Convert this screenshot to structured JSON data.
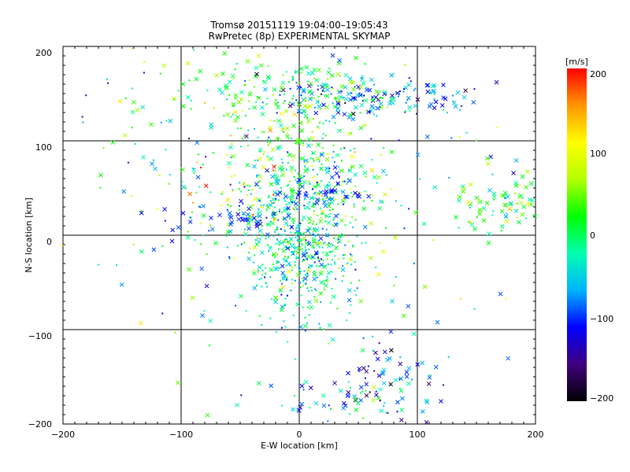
{
  "chart_data": {
    "type": "scatter",
    "title": "Tromsø 20151119 19:04:00–19:05:43",
    "subtitle": "RwPretec (8p) EXPERIMENTAL SKYMAP",
    "xlabel": "E-W location [km]",
    "ylabel": "N-S location [km]",
    "xlim": [
      -200,
      200
    ],
    "ylim": [
      -200,
      200
    ],
    "xticks": [
      "−200",
      "−100",
      "0",
      "100",
      "200"
    ],
    "yticks": [
      "−200",
      "−100",
      "0",
      "100",
      "200"
    ],
    "grid": true,
    "grid_values": [
      -100,
      0,
      100
    ],
    "marker_types": [
      "cross",
      "dot"
    ],
    "colorbar": {
      "label": "[m/s]",
      "range": [
        -200,
        200
      ],
      "ticks": [
        "200",
        "100",
        "0",
        "−100",
        "−200"
      ],
      "colormap": [
        "#000000",
        "#40007f",
        "#0000ff",
        "#00b4ff",
        "#00ffb0",
        "#00ff00",
        "#b4ff00",
        "#ffff00",
        "#ff9600",
        "#ff0000"
      ]
    },
    "clusters": [
      {
        "center": [
          60,
          145
        ],
        "spread": [
          45,
          10
        ],
        "n": 160,
        "v_mean": -80,
        "v_sd": 40,
        "cross_frac": 0.6
      },
      {
        "center": [
          -10,
          150
        ],
        "spread": [
          45,
          18
        ],
        "n": 180,
        "v_mean": 20,
        "v_sd": 40,
        "cross_frac": 0.45
      },
      {
        "center": [
          -150,
          140
        ],
        "spread": [
          30,
          35
        ],
        "n": 25,
        "v_mean": -20,
        "v_sd": 60,
        "cross_frac": 0.5
      },
      {
        "center": [
          5,
          40
        ],
        "spread": [
          30,
          45
        ],
        "n": 420,
        "v_mean": 5,
        "v_sd": 55,
        "cross_frac": 0.25
      },
      {
        "center": [
          0,
          -20
        ],
        "spread": [
          25,
          35
        ],
        "n": 380,
        "v_mean": -30,
        "v_sd": 40,
        "cross_frac": 0.2
      },
      {
        "center": [
          -45,
          55
        ],
        "spread": [
          40,
          35
        ],
        "n": 110,
        "v_mean": 50,
        "v_sd": 80,
        "cross_frac": 0.3
      },
      {
        "center": [
          -50,
          18
        ],
        "spread": [
          35,
          8
        ],
        "n": 45,
        "v_mean": -100,
        "v_sd": 15,
        "cross_frac": 0.8
      },
      {
        "center": [
          20,
          45
        ],
        "spread": [
          20,
          8
        ],
        "n": 40,
        "v_mean": -100,
        "v_sd": 15,
        "cross_frac": 0.8
      },
      {
        "center": [
          170,
          35
        ],
        "spread": [
          22,
          18
        ],
        "n": 80,
        "v_mean": 10,
        "v_sd": 40,
        "cross_frac": 0.7
      },
      {
        "center": [
          80,
          -150
        ],
        "spread": [
          25,
          22
        ],
        "n": 70,
        "v_mean": -100,
        "v_sd": 60,
        "cross_frac": 0.7
      },
      {
        "center": [
          30,
          -175
        ],
        "spread": [
          25,
          12
        ],
        "n": 40,
        "v_mean": -60,
        "v_sd": 60,
        "cross_frac": 0.6
      },
      {
        "center": [
          0,
          0
        ],
        "spread": [
          110,
          120
        ],
        "n": 200,
        "v_mean": -20,
        "v_sd": 80,
        "cross_frac": 0.5
      }
    ]
  }
}
